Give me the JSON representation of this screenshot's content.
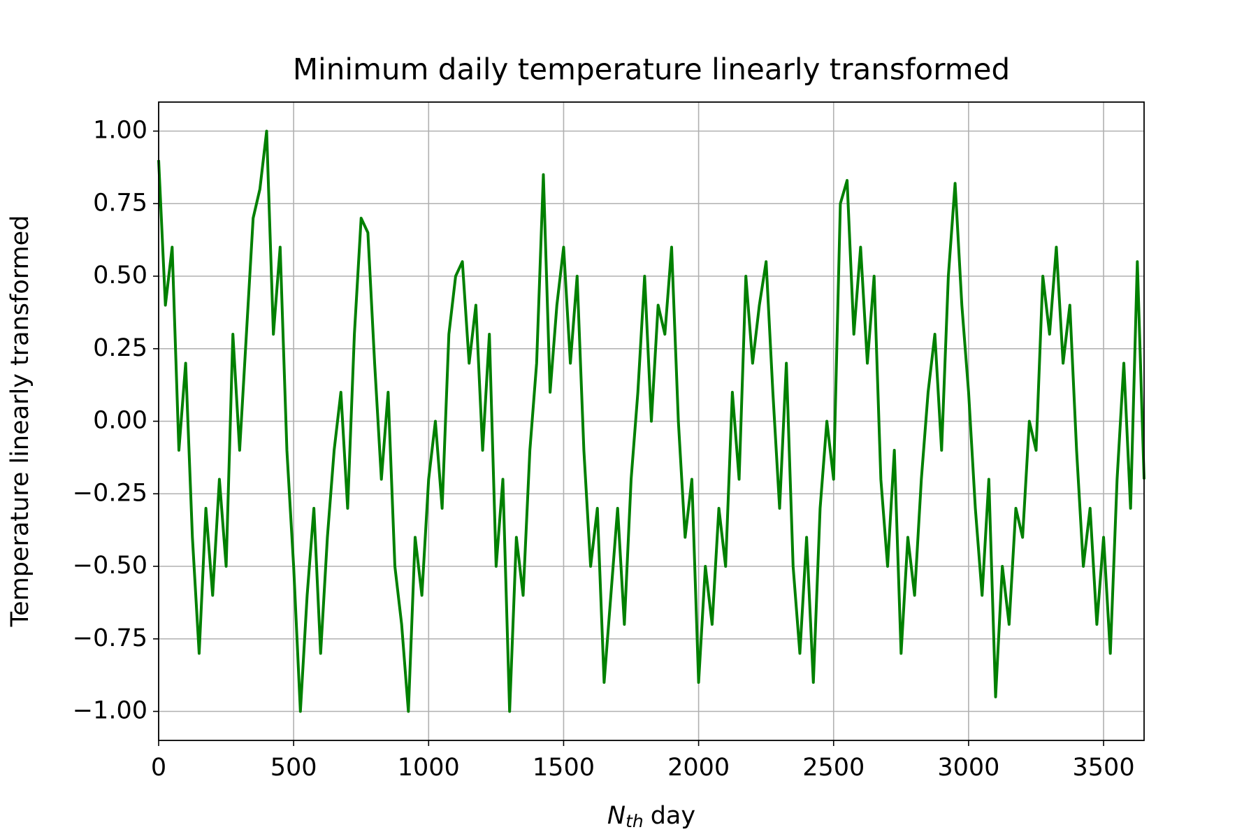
{
  "chart_data": {
    "type": "line",
    "title": "Minimum daily temperature linearly transformed",
    "ylabel": "Temperature linearly transformed",
    "xlabel": [
      "N",
      "th",
      "day"
    ],
    "color": "#008000",
    "grid": true,
    "xlim": [
      0,
      3650
    ],
    "ylim": [
      -1.1,
      1.1
    ],
    "xticks": [
      0,
      500,
      1000,
      1500,
      2000,
      2500,
      3000,
      3500
    ],
    "yticks": [
      {
        "value": -1,
        "label": "−1.00"
      },
      {
        "value": -0.75,
        "label": "−0.75"
      },
      {
        "value": -0.5,
        "label": "−0.50"
      },
      {
        "value": -0.25,
        "label": "−0.25"
      },
      {
        "value": 0,
        "label": "0.00"
      },
      {
        "value": 0.25,
        "label": "0.25"
      },
      {
        "value": 0.5,
        "label": "0.50"
      },
      {
        "value": 0.75,
        "label": "0.75"
      },
      {
        "value": 1,
        "label": "1.00"
      }
    ],
    "x": [
      0,
      25,
      50,
      75,
      100,
      125,
      150,
      175,
      200,
      225,
      250,
      275,
      300,
      325,
      350,
      375,
      400,
      425,
      450,
      475,
      500,
      525,
      550,
      575,
      600,
      625,
      650,
      675,
      700,
      725,
      750,
      775,
      800,
      825,
      850,
      875,
      900,
      925,
      950,
      975,
      1000,
      1025,
      1050,
      1075,
      1100,
      1125,
      1150,
      1175,
      1200,
      1225,
      1250,
      1275,
      1300,
      1325,
      1350,
      1375,
      1400,
      1425,
      1450,
      1475,
      1500,
      1525,
      1550,
      1575,
      1600,
      1625,
      1650,
      1675,
      1700,
      1725,
      1750,
      1775,
      1800,
      1825,
      1850,
      1875,
      1900,
      1925,
      1950,
      1975,
      2000,
      2025,
      2050,
      2075,
      2100,
      2125,
      2150,
      2175,
      2200,
      2225,
      2250,
      2275,
      2300,
      2325,
      2350,
      2375,
      2400,
      2425,
      2450,
      2475,
      2500,
      2525,
      2550,
      2575,
      2600,
      2625,
      2650,
      2675,
      2700,
      2725,
      2750,
      2775,
      2800,
      2825,
      2850,
      2875,
      2900,
      2925,
      2950,
      2975,
      3000,
      3025,
      3050,
      3075,
      3100,
      3125,
      3150,
      3175,
      3200,
      3225,
      3250,
      3275,
      3300,
      3325,
      3350,
      3375,
      3400,
      3425,
      3450,
      3475,
      3500,
      3525,
      3550,
      3575,
      3600,
      3625,
      3650
    ],
    "values": [
      0.9,
      0.4,
      0.6,
      -0.1,
      0.2,
      -0.4,
      -0.8,
      -0.3,
      -0.6,
      -0.2,
      -0.5,
      0.3,
      -0.1,
      0.3,
      0.7,
      0.8,
      1.0,
      0.3,
      0.6,
      -0.1,
      -0.5,
      -1.0,
      -0.6,
      -0.3,
      -0.8,
      -0.4,
      -0.1,
      0.1,
      -0.3,
      0.3,
      0.7,
      0.65,
      0.2,
      -0.2,
      0.1,
      -0.5,
      -0.7,
      -1.0,
      -0.4,
      -0.6,
      -0.2,
      0.0,
      -0.3,
      0.3,
      0.5,
      0.55,
      0.2,
      0.4,
      -0.1,
      0.3,
      -0.5,
      -0.2,
      -1.0,
      -0.4,
      -0.6,
      -0.1,
      0.2,
      0.85,
      0.1,
      0.4,
      0.6,
      0.2,
      0.5,
      -0.1,
      -0.5,
      -0.3,
      -0.9,
      -0.6,
      -0.3,
      -0.7,
      -0.2,
      0.1,
      0.5,
      0.0,
      0.4,
      0.3,
      0.6,
      0.0,
      -0.4,
      -0.2,
      -0.9,
      -0.5,
      -0.7,
      -0.3,
      -0.5,
      0.1,
      -0.2,
      0.5,
      0.2,
      0.4,
      0.55,
      0.1,
      -0.3,
      0.2,
      -0.5,
      -0.8,
      -0.4,
      -0.9,
      -0.3,
      0.0,
      -0.2,
      0.75,
      0.83,
      0.3,
      0.6,
      0.2,
      0.5,
      -0.2,
      -0.5,
      -0.1,
      -0.8,
      -0.4,
      -0.6,
      -0.2,
      0.1,
      0.3,
      -0.1,
      0.5,
      0.82,
      0.4,
      0.1,
      -0.3,
      -0.6,
      -0.2,
      -0.95,
      -0.5,
      -0.7,
      -0.3,
      -0.4,
      0.0,
      -0.1,
      0.5,
      0.3,
      0.6,
      0.2,
      0.4,
      -0.1,
      -0.5,
      -0.3,
      -0.7,
      -0.4,
      -0.8,
      -0.2,
      0.2,
      -0.3,
      0.55,
      -0.2
    ]
  }
}
